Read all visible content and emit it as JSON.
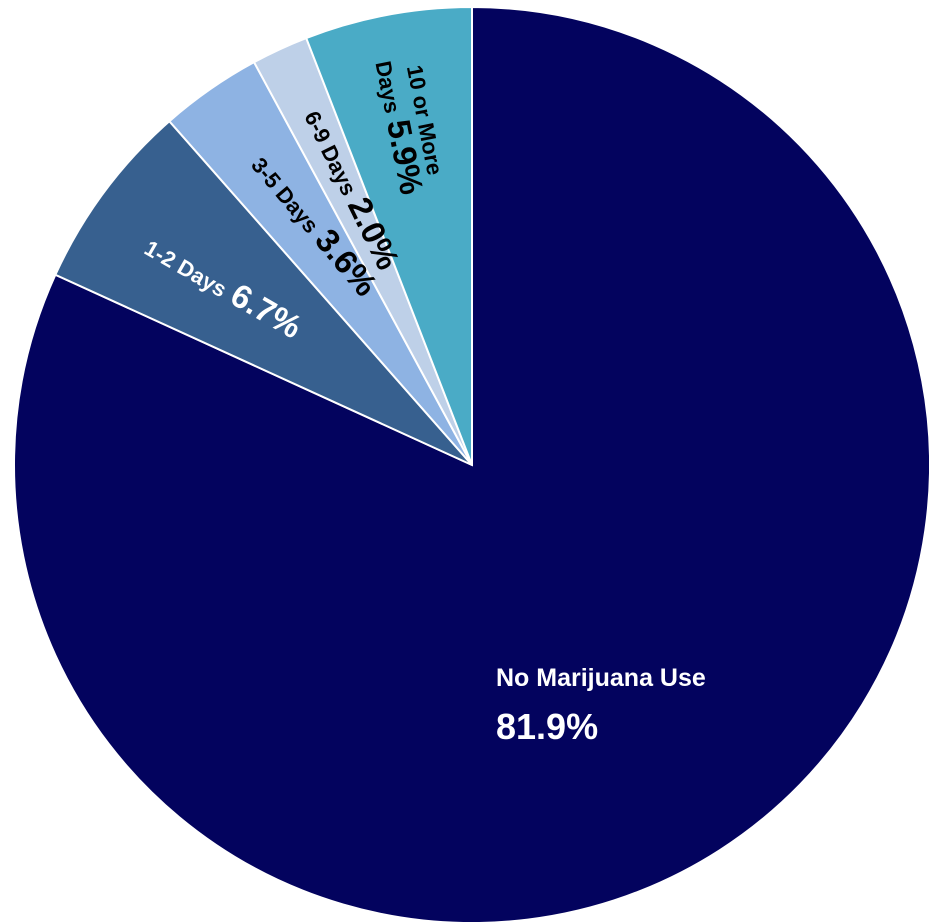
{
  "chart_data": {
    "type": "pie",
    "title": "",
    "start_angle_deg": 90,
    "direction": "clockwise",
    "slices": [
      {
        "label": "No Marijuana Use",
        "value": 81.9,
        "value_text": "81.9%",
        "color": "#03035e",
        "label_color": "#ffffff"
      },
      {
        "label": "1-2 Days",
        "value": 6.7,
        "value_text": "6.7%",
        "color": "#37608f",
        "label_color": "#ffffff"
      },
      {
        "label": "3-5 Days",
        "value": 3.6,
        "value_text": "3.6%",
        "color": "#8eb3e3",
        "label_color": "#000000"
      },
      {
        "label": "6-9 Days",
        "value": 2.0,
        "value_text": "2.0%",
        "color": "#bed0e8",
        "label_color": "#000000"
      },
      {
        "label": "10 or More Days",
        "label_lines": [
          "10 or More",
          "Days"
        ],
        "value": 5.9,
        "value_text": "5.9%",
        "color": "#4aabc6",
        "label_color": "#000000"
      }
    ]
  }
}
